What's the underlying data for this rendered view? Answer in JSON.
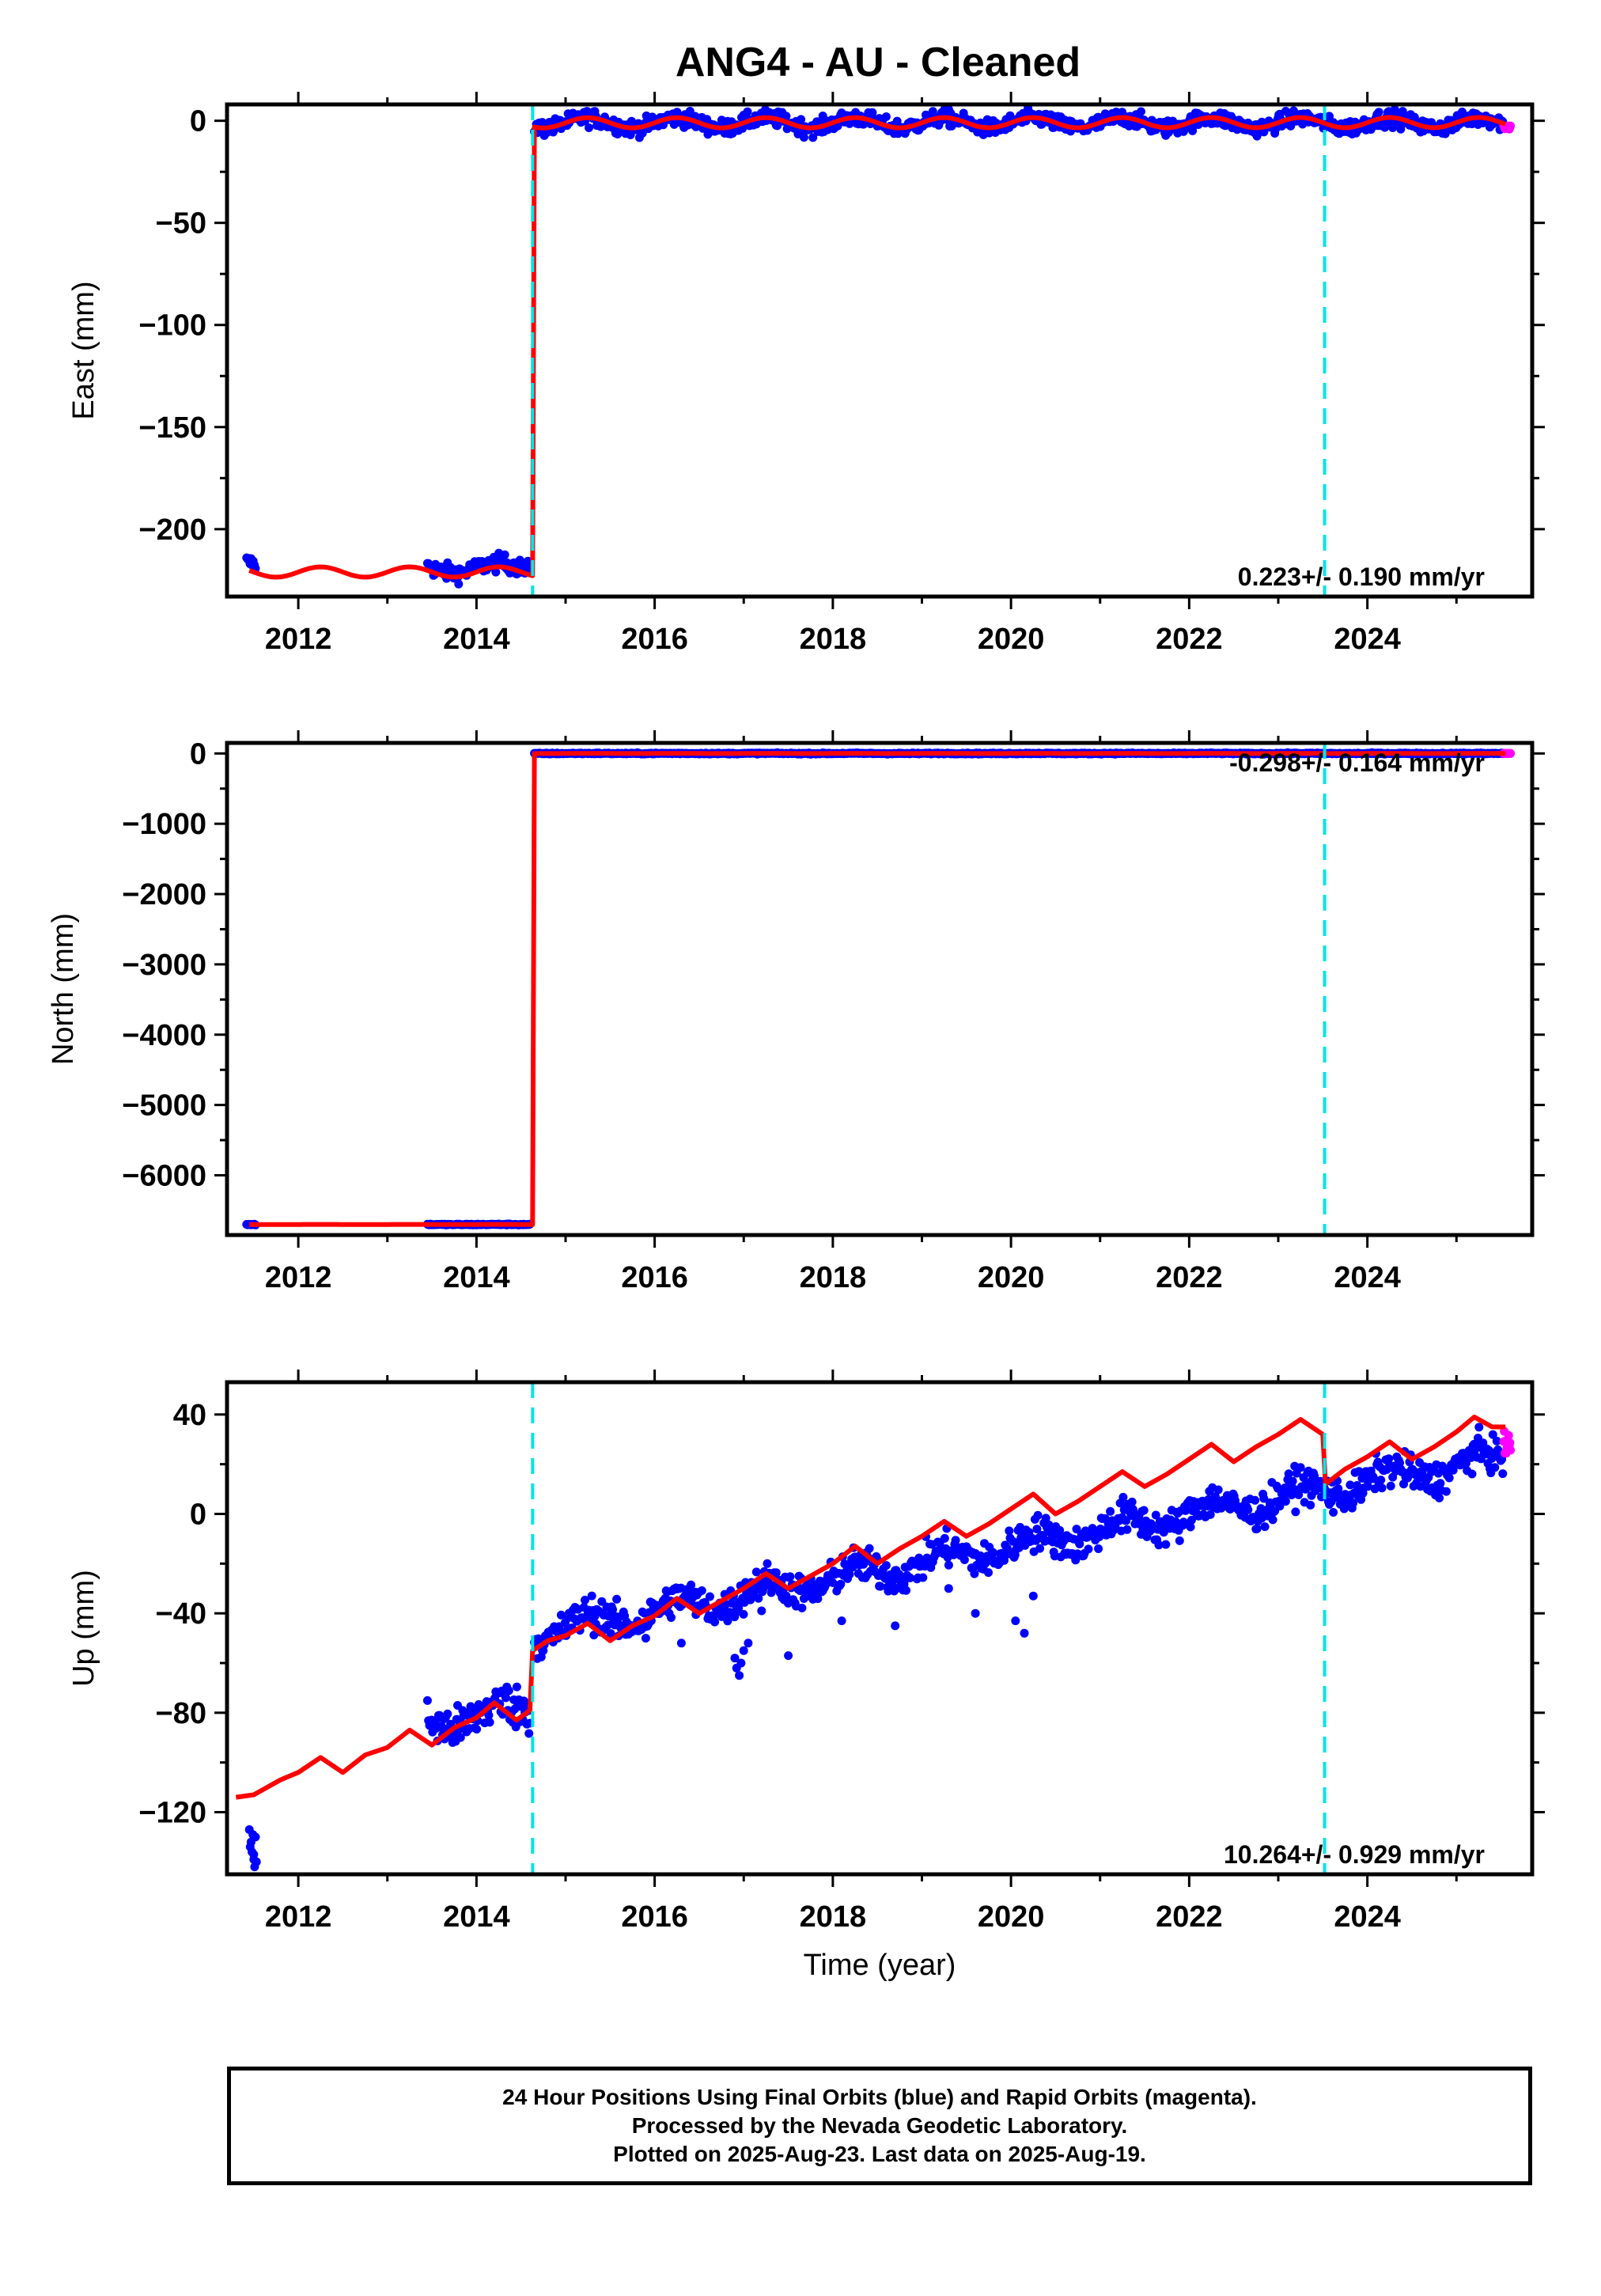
{
  "title": "ANG4  - AU - Cleaned",
  "xlabel": "Time (year)",
  "colors": {
    "final_orbits": "#0000ff",
    "rapid_orbits": "#ff00ff",
    "model": "#ff0000",
    "event_line": "#00e5e5",
    "frame": "#000000"
  },
  "footer": {
    "line1": "24 Hour Positions Using Final Orbits (blue) and Rapid Orbits (magenta).",
    "line2": "Processed by the Nevada Geodetic Laboratory.",
    "line3": "Plotted on 2025-Aug-23. Last data on 2025-Aug-19."
  },
  "chart_data": [
    {
      "type": "scatter",
      "name": "east",
      "ylabel": "East (mm)",
      "xlim": [
        2011.2,
        2025.85
      ],
      "ylim": [
        -233,
        8
      ],
      "xticks": [
        2012,
        2014,
        2016,
        2018,
        2020,
        2022,
        2024
      ],
      "xtick_labels": [
        "2012",
        "2014",
        "2016",
        "2018",
        "2020",
        "2022",
        "2024"
      ],
      "yticks": [
        0,
        -50,
        -100,
        -150,
        -200
      ],
      "ytick_labels": [
        "0",
        "−50",
        "−100",
        "−150",
        "−200"
      ],
      "velocity_label": "0.223+/- 0.190 mm/yr",
      "event_lines": [
        2014.63,
        2023.52
      ],
      "data_segments": [
        {
          "start": 2011.42,
          "end": 2011.52,
          "offset": -217,
          "noise": 2.5
        },
        {
          "start": 2013.45,
          "end": 2014.6,
          "offset": -219,
          "noise": 3
        },
        {
          "start": 2014.65,
          "end": 2025.52,
          "offset": -1,
          "noise": 2.8
        }
      ],
      "model": {
        "steps": [
          [
            2011.45,
            -221
          ],
          [
            2014.63,
            -1
          ]
        ],
        "trend": 0.223,
        "annual_amp": 2.5
      }
    },
    {
      "type": "scatter",
      "name": "north",
      "ylabel": "North (mm)",
      "xlim": [
        2011.2,
        2025.85
      ],
      "ylim": [
        -6850,
        150
      ],
      "xticks": [
        2012,
        2014,
        2016,
        2018,
        2020,
        2022,
        2024
      ],
      "xtick_labels": [
        "2012",
        "2014",
        "2016",
        "2018",
        "2020",
        "2022",
        "2024"
      ],
      "yticks": [
        0,
        -1000,
        -2000,
        -3000,
        -4000,
        -5000,
        -6000
      ],
      "ytick_labels": [
        "0",
        "−1000",
        "−2000",
        "−3000",
        "−4000",
        "−5000",
        "−6000"
      ],
      "velocity_label": "-0.298+/- 0.164 mm/yr",
      "event_lines": [
        2023.52
      ],
      "data_segments": [
        {
          "start": 2011.42,
          "end": 2011.52,
          "offset": -6700,
          "noise": 6
        },
        {
          "start": 2013.45,
          "end": 2014.6,
          "offset": -6700,
          "noise": 6
        },
        {
          "start": 2014.65,
          "end": 2025.52,
          "offset": 0,
          "noise": 6
        }
      ],
      "model": {
        "steps": [
          [
            2011.45,
            -6700
          ],
          [
            2014.63,
            0
          ]
        ],
        "trend": -0.298,
        "annual_amp": 1
      }
    },
    {
      "type": "scatter",
      "name": "up",
      "ylabel": "Up (mm)",
      "xlim": [
        2011.2,
        2025.85
      ],
      "ylim": [
        -145,
        53
      ],
      "xticks": [
        2012,
        2014,
        2016,
        2018,
        2020,
        2022,
        2024
      ],
      "xtick_labels": [
        "2012",
        "2014",
        "2016",
        "2018",
        "2020",
        "2022",
        "2024"
      ],
      "yticks": [
        40,
        0,
        -40,
        -80,
        -120
      ],
      "ytick_labels": [
        "40",
        "0",
        "−40",
        "−80",
        "−120"
      ],
      "velocity_label": "10.264+/- 0.929 mm/yr",
      "event_lines": [
        2014.63,
        2023.52
      ],
      "data_points": [
        [
          2011.45,
          -127
        ],
        [
          2011.47,
          -132
        ],
        [
          2011.48,
          -136
        ],
        [
          2011.5,
          -139
        ],
        [
          2011.51,
          -142
        ],
        [
          2011.52,
          -130
        ],
        [
          2011.46,
          -134
        ],
        [
          2011.49,
          -129
        ],
        [
          2011.5,
          -137
        ],
        [
          2011.53,
          -140
        ]
      ],
      "data_segments": [
        {
          "start": 2013.45,
          "end": 2014.6,
          "base": -84,
          "slope": 5,
          "noise": 6
        },
        {
          "start": 2014.65,
          "end": 2025.52,
          "base": -48,
          "slope": 6.5,
          "noise": 5
        }
      ],
      "outliers": [
        [
          2016.9,
          -58
        ],
        [
          2016.92,
          -62
        ],
        [
          2016.95,
          -65
        ],
        [
          2016.97,
          -60
        ],
        [
          2017.0,
          -55
        ],
        [
          2017.05,
          -52
        ],
        [
          2017.5,
          -57
        ],
        [
          2018.1,
          -43
        ],
        [
          2018.7,
          -45
        ],
        [
          2019.3,
          -30
        ],
        [
          2019.6,
          -40
        ],
        [
          2020.05,
          -43
        ],
        [
          2020.15,
          -48
        ],
        [
          2020.25,
          -33
        ],
        [
          2015.9,
          -50
        ],
        [
          2016.3,
          -52
        ],
        [
          2017.2,
          -39
        ]
      ],
      "model": {
        "points": [
          [
            2011.3,
            -114
          ],
          [
            2011.5,
            -113
          ],
          [
            2011.8,
            -107
          ],
          [
            2012.0,
            -104
          ],
          [
            2012.25,
            -98
          ],
          [
            2012.5,
            -104
          ],
          [
            2012.75,
            -97
          ],
          [
            2013.0,
            -94
          ],
          [
            2013.25,
            -87
          ],
          [
            2013.5,
            -93
          ],
          [
            2013.75,
            -86
          ],
          [
            2014.0,
            -82
          ],
          [
            2014.2,
            -76
          ],
          [
            2014.45,
            -83
          ],
          [
            2014.6,
            -79
          ],
          [
            2014.63,
            -55
          ],
          [
            2014.8,
            -51
          ],
          [
            2015.0,
            -49
          ],
          [
            2015.25,
            -44
          ],
          [
            2015.5,
            -51
          ],
          [
            2015.75,
            -45
          ],
          [
            2016.0,
            -41
          ],
          [
            2016.25,
            -34
          ],
          [
            2016.5,
            -40
          ],
          [
            2016.75,
            -35
          ],
          [
            2017.0,
            -30
          ],
          [
            2017.25,
            -24
          ],
          [
            2017.5,
            -30
          ],
          [
            2017.75,
            -25
          ],
          [
            2018.0,
            -20
          ],
          [
            2018.25,
            -13
          ],
          [
            2018.5,
            -20
          ],
          [
            2018.75,
            -14
          ],
          [
            2019.0,
            -9
          ],
          [
            2019.25,
            -3
          ],
          [
            2019.5,
            -9
          ],
          [
            2019.75,
            -4
          ],
          [
            2020.0,
            2
          ],
          [
            2020.25,
            8
          ],
          [
            2020.5,
            0
          ],
          [
            2020.75,
            5
          ],
          [
            2021.0,
            11
          ],
          [
            2021.25,
            17
          ],
          [
            2021.5,
            11
          ],
          [
            2021.75,
            16
          ],
          [
            2022.0,
            22
          ],
          [
            2022.25,
            28
          ],
          [
            2022.5,
            21
          ],
          [
            2022.75,
            27
          ],
          [
            2023.0,
            32
          ],
          [
            2023.25,
            38
          ],
          [
            2023.5,
            32
          ],
          [
            2023.53,
            12
          ],
          [
            2023.75,
            18
          ],
          [
            2024.0,
            23
          ],
          [
            2024.25,
            29
          ],
          [
            2024.5,
            22
          ],
          [
            2024.75,
            27
          ],
          [
            2025.0,
            33
          ],
          [
            2025.2,
            39
          ],
          [
            2025.4,
            35
          ],
          [
            2025.55,
            35
          ]
        ]
      }
    }
  ]
}
